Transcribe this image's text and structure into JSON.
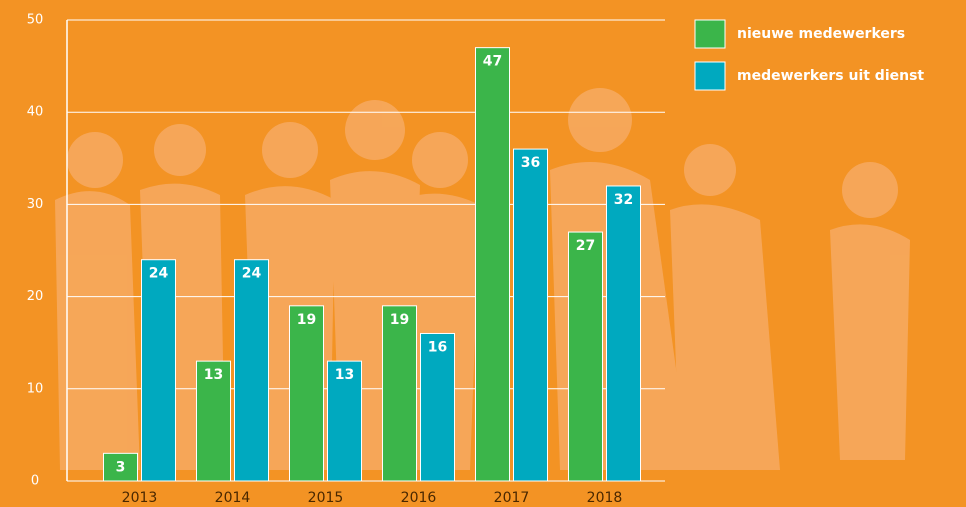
{
  "chart_data": {
    "type": "bar",
    "categories": [
      "2013",
      "2014",
      "2015",
      "2016",
      "2017",
      "2018"
    ],
    "series": [
      {
        "name": "nieuwe medewerkers",
        "color": "#3bb54a",
        "values": [
          3,
          13,
          19,
          19,
          47,
          27
        ]
      },
      {
        "name": "medewerkers uit dienst",
        "color": "#00a9bf",
        "values": [
          24,
          24,
          13,
          16,
          36,
          32
        ]
      }
    ],
    "ylim": [
      0,
      50
    ],
    "yticks": [
      0,
      10,
      20,
      30,
      40,
      50
    ],
    "grid": true,
    "legend": "top-right"
  }
}
